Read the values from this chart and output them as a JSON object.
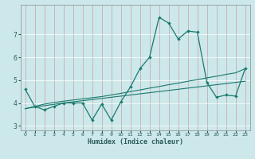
{
  "x": [
    0,
    1,
    2,
    3,
    4,
    5,
    6,
    7,
    8,
    9,
    10,
    11,
    12,
    13,
    14,
    15,
    16,
    17,
    18,
    19,
    20,
    21,
    22,
    23
  ],
  "y_jagged": [
    4.6,
    3.85,
    3.7,
    3.85,
    4.0,
    4.0,
    4.0,
    3.25,
    3.95,
    3.25,
    4.05,
    4.7,
    5.5,
    6.0,
    7.75,
    7.5,
    6.8,
    7.15,
    7.1,
    4.9,
    4.25,
    4.35,
    4.3,
    5.5
  ],
  "y_line1": [
    3.75,
    3.85,
    3.95,
    4.02,
    4.08,
    4.13,
    4.18,
    4.23,
    4.28,
    4.35,
    4.42,
    4.5,
    4.57,
    4.65,
    4.72,
    4.8,
    4.87,
    4.95,
    5.02,
    5.1,
    5.17,
    5.25,
    5.32,
    5.5
  ],
  "y_line2": [
    3.75,
    3.82,
    3.88,
    3.94,
    4.0,
    4.05,
    4.1,
    4.15,
    4.2,
    4.25,
    4.3,
    4.35,
    4.4,
    4.45,
    4.5,
    4.55,
    4.6,
    4.65,
    4.7,
    4.75,
    4.8,
    4.85,
    4.9,
    4.95
  ],
  "line_color": "#1a7a6e",
  "bg_color": "#cce8ea",
  "grid_color": "#b8d8da",
  "xlabel": "Humidex (Indice chaleur)",
  "ylim": [
    2.8,
    8.3
  ],
  "xlim": [
    -0.5,
    23.5
  ],
  "yticks": [
    3,
    4,
    5,
    6,
    7
  ],
  "xticks": [
    0,
    1,
    2,
    3,
    4,
    5,
    6,
    7,
    8,
    9,
    10,
    11,
    12,
    13,
    14,
    15,
    16,
    17,
    18,
    19,
    20,
    21,
    22,
    23
  ]
}
